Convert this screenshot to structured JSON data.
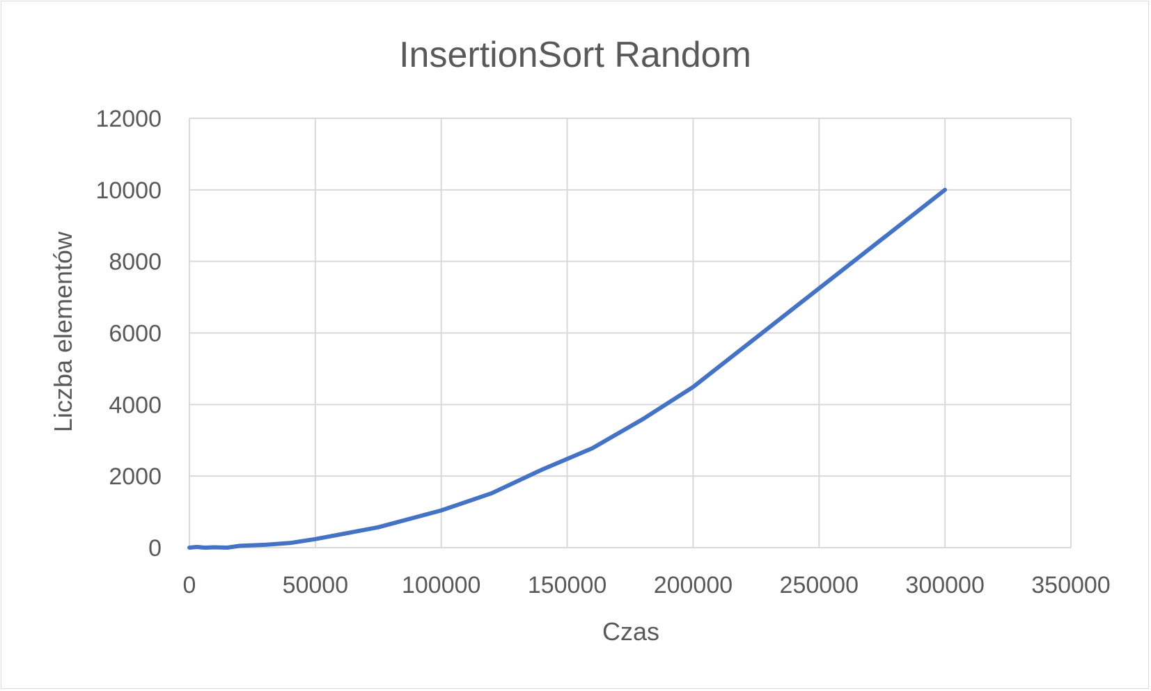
{
  "chart_data": {
    "type": "line",
    "title": "InsertionSort Random",
    "xlabel": "Czas",
    "ylabel": "Liczba elementów",
    "xlim": [
      0,
      350000
    ],
    "ylim": [
      0,
      12000
    ],
    "x_ticks": [
      "0",
      "50000",
      "100000",
      "150000",
      "200000",
      "250000",
      "300000",
      "350000"
    ],
    "y_ticks": [
      "0",
      "2000",
      "4000",
      "6000",
      "8000",
      "10000",
      "12000"
    ],
    "grid": true,
    "legend": "none",
    "series": [
      {
        "color": "#4472c4",
        "points": [
          [
            0,
            0
          ],
          [
            3000,
            20
          ],
          [
            6000,
            0
          ],
          [
            10000,
            10
          ],
          [
            15000,
            0
          ],
          [
            20000,
            50
          ],
          [
            30000,
            80
          ],
          [
            40000,
            130
          ],
          [
            50000,
            240
          ],
          [
            75000,
            570
          ],
          [
            100000,
            1040
          ],
          [
            120000,
            1520
          ],
          [
            140000,
            2180
          ],
          [
            160000,
            2780
          ],
          [
            180000,
            3590
          ],
          [
            200000,
            4490
          ],
          [
            300000,
            10000
          ]
        ]
      }
    ]
  }
}
